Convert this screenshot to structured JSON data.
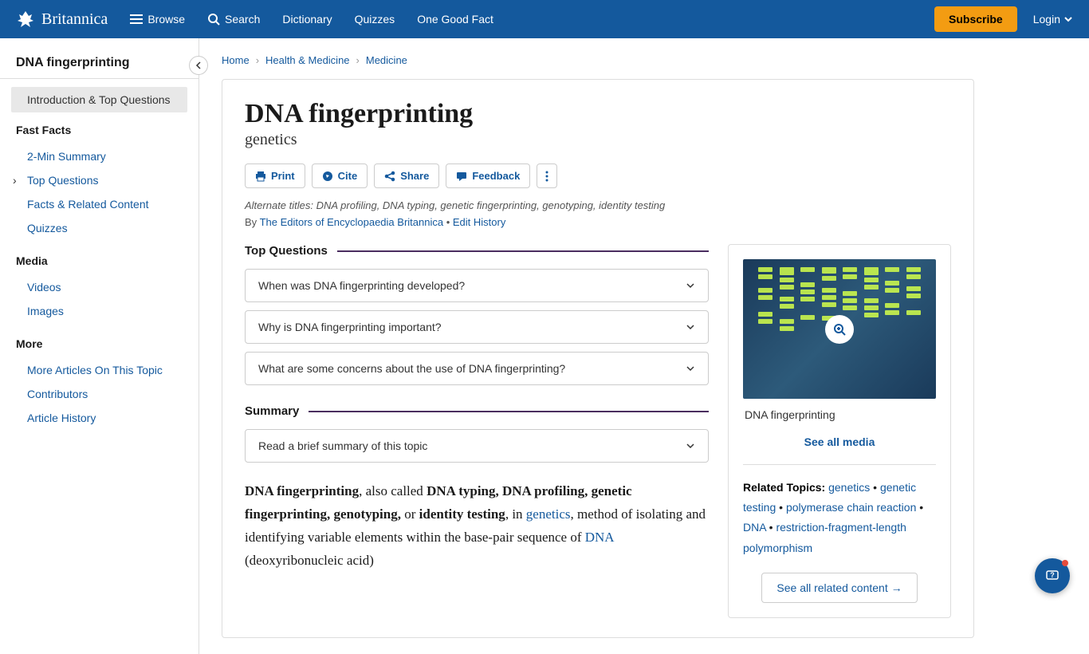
{
  "header": {
    "brand": "Britannica",
    "nav": {
      "browse": "Browse",
      "search": "Search",
      "dictionary": "Dictionary",
      "quizzes": "Quizzes",
      "fact": "One Good Fact"
    },
    "subscribe": "Subscribe",
    "login": "Login"
  },
  "sidebar": {
    "title": "DNA fingerprinting",
    "active": "Introduction & Top Questions",
    "sections": [
      {
        "heading": "Fast Facts",
        "links": [
          "2-Min Summary",
          "Top Questions",
          "Facts & Related Content",
          "Quizzes"
        ],
        "arrow_index": 1
      },
      {
        "heading": "Media",
        "links": [
          "Videos",
          "Images"
        ]
      },
      {
        "heading": "More",
        "links": [
          "More Articles On This Topic",
          "Contributors",
          "Article History"
        ]
      }
    ]
  },
  "breadcrumbs": [
    "Home",
    "Health & Medicine",
    "Medicine"
  ],
  "article": {
    "title": "DNA fingerprinting",
    "subtitle": "genetics",
    "actions": {
      "print": "Print",
      "cite": "Cite",
      "share": "Share",
      "feedback": "Feedback"
    },
    "alt_titles": "Alternate titles: DNA profiling, DNA typing, genetic fingerprinting, genotyping, identity testing",
    "byline_prefix": "By ",
    "byline_author": "The Editors of Encyclopaedia Britannica",
    "byline_sep": " • ",
    "byline_edit": "Edit History",
    "top_questions_heading": "Top Questions",
    "questions": [
      "When was DNA fingerprinting developed?",
      "Why is DNA fingerprinting important?",
      "What are some concerns about the use of DNA fingerprinting?"
    ],
    "summary_heading": "Summary",
    "summary_prompt": "Read a brief summary of this topic",
    "body_bold1": "DNA fingerprinting",
    "body_text1": ", also called ",
    "body_bold2": "DNA typing, DNA profiling, genetic fingerprinting, genotyping,",
    "body_text2": " or ",
    "body_bold3": "identity testing",
    "body_text3": ", in ",
    "body_link1": "genetics",
    "body_text4": ", method of isolating and identifying variable elements within the base-pair sequence of ",
    "body_link2": "DNA",
    "body_text5": " (deoxyribonucleic acid)"
  },
  "media": {
    "caption": "DNA fingerprinting",
    "see_all": "See all media",
    "related_label": "Related Topics:",
    "related": [
      "genetics",
      "genetic testing",
      "polymerase chain reaction",
      "DNA",
      "restriction-fragment-length polymorphism"
    ],
    "see_related": "See all related content →"
  },
  "colors": {
    "primary": "#14599d",
    "accent": "#f39c12",
    "section_line": "#4a2d5f"
  }
}
